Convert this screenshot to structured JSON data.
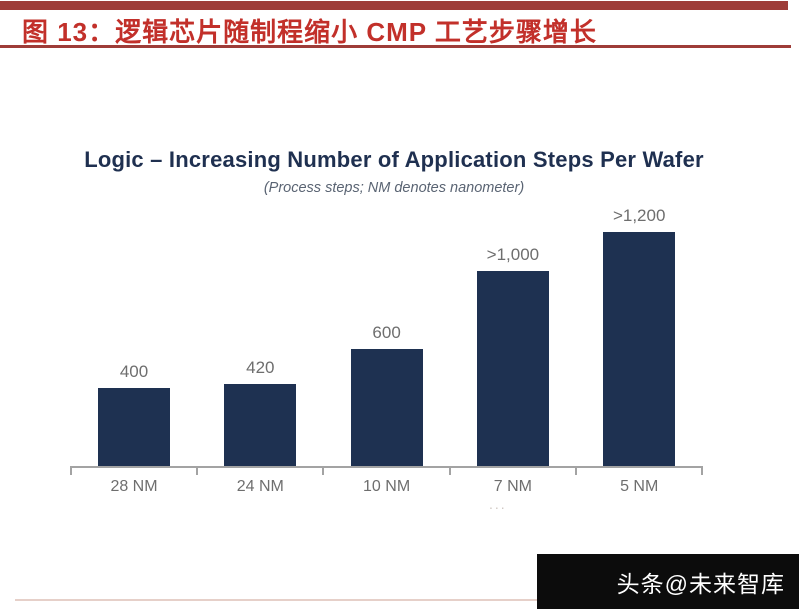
{
  "page": {
    "figure_caption": "图 13：逻辑芯片随制程缩小 CMP 工艺步骤增长",
    "artifact_dots": "...",
    "watermark_text": "头条@未来智库"
  },
  "chart": {
    "title": "Logic – Increasing Number of Application Steps Per Wafer",
    "subtitle": "(Process steps; NM denotes nanometer)"
  },
  "chart_data": {
    "type": "bar",
    "title": "Logic – Increasing Number of Application Steps Per Wafer",
    "subtitle": "(Process steps; NM denotes nanometer)",
    "categories": [
      "28 NM",
      "24 NM",
      "10 NM",
      "7 NM",
      "5 NM"
    ],
    "values": [
      400,
      420,
      600,
      1000,
      1200
    ],
    "value_labels": [
      "400",
      "420",
      "600",
      ">1,000",
      ">1,200"
    ],
    "xlabel": "",
    "ylabel": "",
    "ylim": [
      0,
      1250
    ],
    "grid": false,
    "legend": false,
    "value_label_position": "above-bar",
    "bar_color": "#1e3151",
    "value_label_color": "#6e6e6e",
    "category_label_color": "#6e6e6e",
    "axis_color": "#a3a3a3"
  },
  "colors": {
    "header_rule_red": "#9e3c38",
    "caption_red": "#c2302a",
    "chart_title_navy": "#1f3050",
    "subtitle_gray": "#5a6473",
    "bar_navy": "#1e3151",
    "bottom_rule_pink": "#e6d0c9",
    "watermark_bg": "#0c0c0c",
    "watermark_text_color": "#ffffff"
  }
}
